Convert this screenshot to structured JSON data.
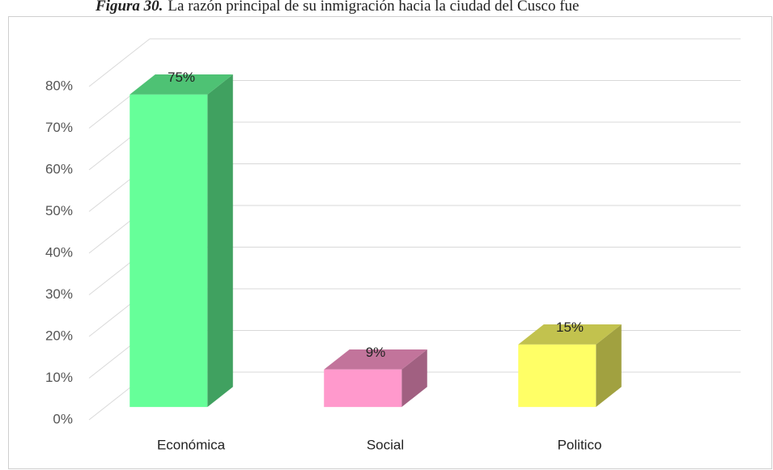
{
  "chart_data": {
    "type": "bar3d",
    "figure_label": "Figura 30.",
    "title": "La razón principal de su inmigración hacia la ciudad del Cusco fue",
    "categories": [
      "Económica",
      "Social",
      "Politico"
    ],
    "values": [
      75,
      9,
      15
    ],
    "value_labels": [
      "75%",
      "9%",
      "15%"
    ],
    "colors": [
      "#66ff99",
      "#ff99cc",
      "#ffff66"
    ],
    "ylim": [
      0,
      80
    ],
    "yticks": [
      {
        "value": 0,
        "label": "0%"
      },
      {
        "value": 10,
        "label": "10%"
      },
      {
        "value": 20,
        "label": "20%"
      },
      {
        "value": 30,
        "label": "30%"
      },
      {
        "value": 40,
        "label": "40%"
      },
      {
        "value": 50,
        "label": "50%"
      },
      {
        "value": 60,
        "label": "60%"
      },
      {
        "value": 70,
        "label": "70%"
      },
      {
        "value": 80,
        "label": "80%"
      }
    ],
    "grid": true
  }
}
